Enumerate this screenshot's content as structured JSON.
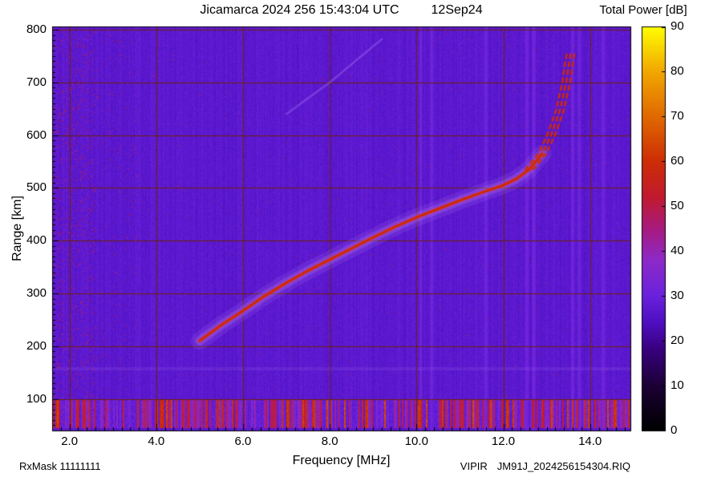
{
  "annotations": {
    "rx_mask": "RxMask 11111111",
    "instrument": "VIPIR",
    "filename": "JM91J_2024256154304.RIQ"
  },
  "chart_data": {
    "type": "heatmap",
    "title": "Jicamarca 2024 256 15:43:04 UTC",
    "date_label": "12Sep24",
    "xlabel": "Frequency [MHz]",
    "ylabel": "Range [km]",
    "xlim": [
      1.6,
      14.93
    ],
    "ylim": [
      40,
      806
    ],
    "xticks": [
      2,
      4,
      6,
      8,
      10,
      12,
      14
    ],
    "xtick_labels": [
      "2.0",
      "4.0",
      "6.0",
      "8.0",
      "10.0",
      "12.0",
      "14.0"
    ],
    "yticks": [
      100,
      200,
      300,
      400,
      500,
      600,
      700,
      800
    ],
    "x_minor_step": 0.2,
    "y_minor_step": 10,
    "grid_color": "#6b2208",
    "background_db": 27,
    "colorbar": {
      "label": "Total Power [dB]",
      "min": 0,
      "max": 90,
      "ticks": [
        0,
        10,
        20,
        30,
        40,
        50,
        60,
        70,
        80,
        90
      ],
      "stops": [
        [
          0,
          "#000000"
        ],
        [
          10,
          "#1c0036"
        ],
        [
          18,
          "#38007e"
        ],
        [
          24,
          "#4e0fc0"
        ],
        [
          30,
          "#6a22dd"
        ],
        [
          38,
          "#8d2ac8"
        ],
        [
          45,
          "#a81a7e"
        ],
        [
          52,
          "#c11a30"
        ],
        [
          60,
          "#cd2e06"
        ],
        [
          70,
          "#e06a00"
        ],
        [
          80,
          "#f2a800"
        ],
        [
          90,
          "#ffff00"
        ]
      ]
    },
    "echo_trace": {
      "color": "#cf2b04",
      "points": [
        [
          5.0,
          210
        ],
        [
          5.5,
          240
        ],
        [
          6.0,
          267
        ],
        [
          6.5,
          295
        ],
        [
          7.0,
          320
        ],
        [
          7.5,
          343
        ],
        [
          8.0,
          364
        ],
        [
          8.5,
          385
        ],
        [
          9.0,
          406
        ],
        [
          9.5,
          426
        ],
        [
          10.0,
          444
        ],
        [
          10.5,
          460
        ],
        [
          11.0,
          476
        ],
        [
          11.5,
          491
        ],
        [
          12.0,
          505
        ],
        [
          12.3,
          517
        ],
        [
          12.6,
          535
        ],
        [
          12.9,
          565
        ],
        [
          13.1,
          600
        ],
        [
          13.3,
          645
        ],
        [
          13.45,
          700
        ],
        [
          13.55,
          755
        ]
      ],
      "dashed_above_km": 550,
      "parallel_offsets_mhz": [
        -0.09,
        0,
        0.09
      ]
    },
    "second_echo": {
      "points": [
        [
          7.0,
          640
        ],
        [
          8.0,
          700
        ],
        [
          9.2,
          782
        ]
      ]
    },
    "noise_band_km": [
      44,
      97
    ],
    "bright_columns_mhz": [
      10.1,
      10.35,
      11.6,
      12.55,
      12.7,
      13.6,
      13.75,
      14.3
    ],
    "speckle_regions": [
      {
        "mhz": [
          1.6,
          2.6
        ],
        "density": 0.05
      },
      {
        "mhz": [
          2.6,
          3.6
        ],
        "density": 0.012
      }
    ],
    "speckle_default_density": 0.0015,
    "faint_horizontal_bands_km": [
      157
    ]
  }
}
